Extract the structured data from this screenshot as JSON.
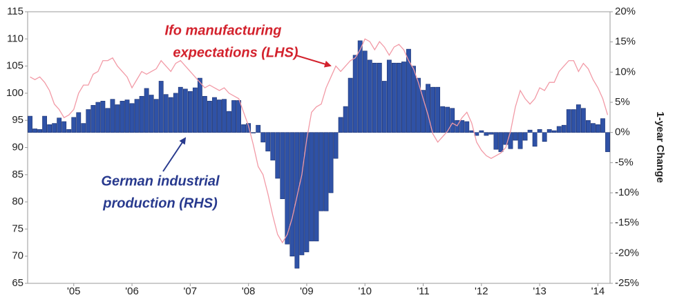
{
  "chart_data": {
    "type": "bar",
    "categories": [
      null,
      null,
      null,
      null,
      null,
      null,
      null,
      null,
      null,
      "'05",
      null,
      null,
      null,
      null,
      null,
      null,
      null,
      null,
      null,
      null,
      null,
      "'06",
      null,
      null,
      null,
      null,
      null,
      null,
      null,
      null,
      null,
      null,
      null,
      "'07",
      null,
      null,
      null,
      null,
      null,
      null,
      null,
      null,
      null,
      null,
      null,
      "'08",
      null,
      null,
      null,
      null,
      null,
      null,
      null,
      null,
      null,
      null,
      null,
      "'09",
      null,
      null,
      null,
      null,
      null,
      null,
      null,
      null,
      null,
      null,
      null,
      "'10",
      null,
      null,
      null,
      null,
      null,
      null,
      null,
      null,
      null,
      null,
      null,
      "'11",
      null,
      null,
      null,
      null,
      null,
      null,
      null,
      null,
      null,
      null,
      null,
      "'12",
      null,
      null,
      null,
      null,
      null,
      null,
      null,
      null,
      null,
      null,
      null,
      "'13",
      null,
      null,
      null,
      null,
      null,
      null,
      null,
      null,
      null,
      null,
      null,
      "'14",
      null,
      null
    ],
    "series": [
      {
        "type": "bar",
        "axis": "y2",
        "color": "#2f52a6",
        "edge": "#1c3270",
        "values": [
          2.7,
          0.6,
          0.5,
          2.7,
          1.3,
          1.5,
          2.4,
          1.8,
          0.5,
          2.5,
          3.3,
          1.5,
          3.8,
          4.5,
          5.0,
          5.2,
          4.0,
          5.5,
          4.6,
          5.2,
          5.4,
          4.8,
          5.5,
          6.0,
          7.3,
          6.2,
          5.5,
          8.5,
          6.3,
          5.8,
          6.5,
          7.5,
          7.2,
          6.8,
          7.4,
          9.0,
          6.0,
          5.2,
          5.8,
          5.4,
          5.5,
          3.5,
          5.3,
          5.3,
          1.3,
          1.5,
          -0.1,
          1.2,
          -1.6,
          -3.1,
          -4.6,
          -7.6,
          -11.0,
          -18.5,
          -20.5,
          -22.5,
          -20.3,
          -19.8,
          -18.0,
          -18.0,
          -13.0,
          -13.0,
          -10.0,
          -4.3,
          2.5,
          4.3,
          9.0,
          12.8,
          15.2,
          13.5,
          12.0,
          11.5,
          11.5,
          8.5,
          12.0,
          11.5,
          11.5,
          11.7,
          13.8,
          11.0,
          9.0,
          7.0,
          8.0,
          7.5,
          7.5,
          4.3,
          4.2,
          4.0,
          2.0,
          2.0,
          1.8,
          0.3,
          -0.5,
          0.3,
          -0.5,
          -0.3,
          -2.8,
          -3.2,
          -2.0,
          -2.7,
          -1.3,
          -2.7,
          -1.3,
          0.4,
          -2.3,
          0.5,
          -1.5,
          0.5,
          0.3,
          1.0,
          1.2,
          3.8,
          3.8,
          4.6,
          4.0,
          2.0,
          1.5,
          1.3,
          2.3,
          -3.2
        ]
      },
      {
        "type": "line",
        "axis": "y",
        "color": "#f29aa6",
        "values": [
          103,
          102.5,
          103,
          102,
          100.5,
          98,
          97,
          95.5,
          96,
          97,
          100,
          101.5,
          101.5,
          103.5,
          104,
          106,
          106,
          106.5,
          105,
          104,
          103,
          101,
          102.5,
          104,
          103.5,
          104,
          104.5,
          106,
          105,
          104,
          105.5,
          106,
          105,
          104,
          103,
          102,
          101,
          101.5,
          101,
          100.5,
          101,
          100,
          99.5,
          99,
          96.5,
          94,
          90.5,
          86.5,
          85,
          81.5,
          77.5,
          74,
          72.5,
          74,
          77,
          81,
          85,
          91.5,
          96.5,
          97.5,
          98,
          101,
          103,
          105,
          104,
          105,
          106,
          106.5,
          108,
          110,
          109.5,
          108,
          109.5,
          108.5,
          107,
          108.5,
          109,
          108,
          106,
          104.5,
          102,
          99,
          96,
          92.5,
          91,
          92,
          93,
          94.5,
          94,
          95.5,
          96.5,
          94.5,
          91,
          89.5,
          88.5,
          88,
          88.5,
          89,
          90,
          93,
          97.5,
          100.5,
          99,
          98,
          99,
          101,
          100.5,
          102,
          102,
          104,
          105,
          106,
          106,
          104,
          105.5,
          104.5,
          102.5,
          101,
          99,
          96
        ]
      }
    ],
    "ylim": [
      65,
      115
    ],
    "yticks": [
      65,
      70,
      75,
      80,
      85,
      90,
      95,
      100,
      105,
      110,
      115
    ],
    "y2lim": [
      -25,
      20
    ],
    "y2ticks": [
      {
        "value": -25,
        "label": "-25%"
      },
      {
        "value": -20,
        "label": "-20%"
      },
      {
        "value": -15,
        "label": "-15%"
      },
      {
        "value": -10,
        "label": "-10%"
      },
      {
        "value": -5,
        "label": "-5%"
      },
      {
        "value": 0,
        "label": "0%"
      },
      {
        "value": 5,
        "label": "5%"
      },
      {
        "value": 10,
        "label": "10%"
      },
      {
        "value": 15,
        "label": "15%"
      },
      {
        "value": 20,
        "label": "20%"
      }
    ],
    "y2label": "1-year Change",
    "annotations": [
      {
        "lines": [
          "Ifo manufacturing",
          "expectations (LHS)"
        ],
        "color": "#d3222d"
      },
      {
        "lines": [
          "German industrial",
          "production (RHS)"
        ],
        "color": "#283a8e"
      }
    ]
  }
}
